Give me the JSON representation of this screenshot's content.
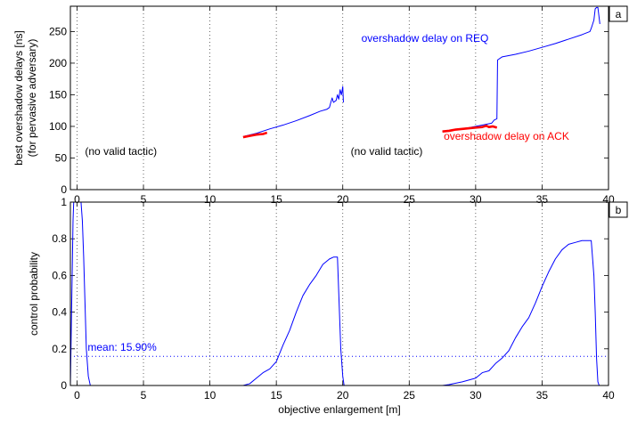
{
  "chart_data": [
    {
      "type": "line",
      "panel_label": "a",
      "title": "",
      "xlabel": "",
      "ylabel": "best overshadow delays [ns]",
      "ylabel2": "(for pervasive adversary)",
      "xlim": [
        -0.5,
        40
      ],
      "ylim": [
        0,
        290
      ],
      "xticks": [
        0,
        5,
        10,
        15,
        20,
        25,
        30,
        35,
        40
      ],
      "yticks": [
        0,
        50,
        100,
        150,
        200,
        250
      ],
      "grid_x": true,
      "grid_y": false,
      "colors": {
        "req": "#0000ff",
        "ack": "#ff0000",
        "grid": "#333333"
      },
      "series": [
        {
          "name": "overshadow delay on REQ",
          "color": "#0000ff",
          "segments": [
            [
              [
                12.5,
                84
              ],
              [
                13.5,
                89
              ],
              [
                14.5,
                96
              ],
              [
                15.5,
                102
              ],
              [
                16.5,
                109
              ],
              [
                17.5,
                117
              ],
              [
                18.3,
                124
              ],
              [
                18.8,
                127
              ],
              [
                19.0,
                130
              ],
              [
                19.1,
                138
              ],
              [
                19.2,
                145
              ],
              [
                19.3,
                138
              ],
              [
                19.5,
                141
              ],
              [
                19.6,
                150
              ],
              [
                19.7,
                143
              ],
              [
                19.8,
                158
              ],
              [
                19.9,
                150
              ],
              [
                20.0,
                163
              ],
              [
                20.05,
                138
              ]
            ],
            [
              [
                27.5,
                92
              ],
              [
                28.5,
                95
              ],
              [
                29.5,
                98
              ],
              [
                30.5,
                102
              ],
              [
                31.2,
                105
              ],
              [
                31.4,
                110
              ],
              [
                31.6,
                112
              ],
              [
                31.65,
                205
              ],
              [
                32.0,
                210
              ],
              [
                33.0,
                214
              ],
              [
                34.0,
                219
              ],
              [
                35.0,
                225
              ],
              [
                36.0,
                231
              ],
              [
                37.0,
                238
              ],
              [
                38.0,
                245
              ],
              [
                38.6,
                250
              ],
              [
                38.7,
                255
              ],
              [
                38.9,
                268
              ],
              [
                39.0,
                286
              ],
              [
                39.1,
                288
              ],
              [
                39.2,
                288
              ],
              [
                39.3,
                271
              ],
              [
                39.35,
                262
              ]
            ]
          ]
        },
        {
          "name": "overshadow delay on ACK",
          "color": "#ff0000",
          "segments": [
            [
              [
                12.5,
                83
              ],
              [
                13.0,
                85
              ],
              [
                13.5,
                87
              ],
              [
                14.0,
                88
              ],
              [
                14.3,
                90
              ]
            ],
            [
              [
                27.5,
                92
              ],
              [
                28.0,
                93
              ],
              [
                28.5,
                95
              ],
              [
                29.0,
                96
              ],
              [
                29.5,
                97
              ],
              [
                30.0,
                98
              ],
              [
                30.5,
                99
              ],
              [
                30.8,
                101
              ],
              [
                31.0,
                99
              ],
              [
                31.3,
                100
              ],
              [
                31.6,
                98
              ]
            ]
          ]
        }
      ],
      "annotations": [
        {
          "text": "(no valid tactic)",
          "x": 0.6,
          "y": 55,
          "color": "#000000"
        },
        {
          "text": "(no valid tactic)",
          "x": 20.6,
          "y": 55,
          "color": "#000000"
        },
        {
          "text": "overshadow delay on REQ",
          "x": 21.4,
          "y": 234,
          "color": "#0000ff"
        },
        {
          "text": "overshadow delay on ACK",
          "x": 27.6,
          "y": 79,
          "color": "#ff0000"
        }
      ]
    },
    {
      "type": "line",
      "panel_label": "b",
      "title": "",
      "xlabel": "objective enlargement [m]",
      "ylabel": "control probability",
      "xlim": [
        -0.5,
        40
      ],
      "ylim": [
        0,
        1
      ],
      "xticks": [
        0,
        5,
        10,
        15,
        20,
        25,
        30,
        35,
        40
      ],
      "yticks": [
        0,
        0.2,
        0.4,
        0.6,
        0.8,
        1
      ],
      "grid_x": true,
      "grid_y": false,
      "colors": {
        "series": "#0000ff",
        "mean": "#0000ff"
      },
      "mean_line": {
        "value": 0.159,
        "label": "mean: 15.90%"
      },
      "series": [
        {
          "color": "#0000ff",
          "points": [
            [
              -0.5,
              0.0
            ],
            [
              -0.3,
              0.9
            ],
            [
              -0.25,
              1.0
            ],
            [
              0.3,
              1.0
            ],
            [
              0.4,
              0.9
            ],
            [
              0.5,
              0.7
            ],
            [
              0.6,
              0.45
            ],
            [
              0.7,
              0.2
            ],
            [
              0.85,
              0.05
            ],
            [
              1.0,
              0.0
            ],
            [
              12.5,
              0.0
            ],
            [
              13.0,
              0.01
            ],
            [
              13.5,
              0.04
            ],
            [
              14.0,
              0.07
            ],
            [
              14.5,
              0.09
            ],
            [
              15.0,
              0.13
            ],
            [
              15.5,
              0.22
            ],
            [
              16.0,
              0.3
            ],
            [
              16.5,
              0.4
            ],
            [
              17.0,
              0.49
            ],
            [
              17.5,
              0.55
            ],
            [
              18.0,
              0.6
            ],
            [
              18.5,
              0.66
            ],
            [
              19.0,
              0.69
            ],
            [
              19.3,
              0.7
            ],
            [
              19.6,
              0.7
            ],
            [
              19.7,
              0.5
            ],
            [
              19.85,
              0.2
            ],
            [
              20.0,
              0.05
            ],
            [
              20.1,
              0.0
            ],
            [
              27.5,
              0.0
            ],
            [
              28.0,
              0.005
            ],
            [
              29.0,
              0.02
            ],
            [
              30.0,
              0.04
            ],
            [
              30.5,
              0.07
            ],
            [
              31.0,
              0.08
            ],
            [
              31.5,
              0.12
            ],
            [
              32.0,
              0.15
            ],
            [
              32.5,
              0.19
            ],
            [
              33.0,
              0.26
            ],
            [
              33.5,
              0.32
            ],
            [
              34.0,
              0.37
            ],
            [
              34.5,
              0.45
            ],
            [
              35.0,
              0.54
            ],
            [
              35.5,
              0.62
            ],
            [
              36.0,
              0.69
            ],
            [
              36.5,
              0.74
            ],
            [
              37.0,
              0.77
            ],
            [
              37.5,
              0.78
            ],
            [
              38.0,
              0.79
            ],
            [
              38.7,
              0.79
            ],
            [
              38.9,
              0.6
            ],
            [
              39.0,
              0.4
            ],
            [
              39.1,
              0.15
            ],
            [
              39.2,
              0.02
            ],
            [
              39.3,
              0.0
            ],
            [
              40.0,
              0.0
            ]
          ]
        }
      ],
      "annotations": []
    }
  ]
}
